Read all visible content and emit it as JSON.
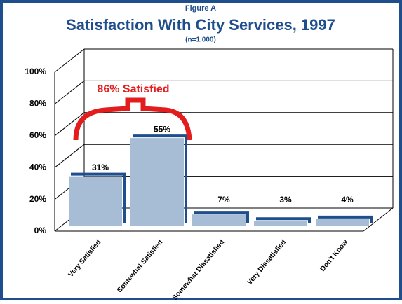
{
  "chart_data": {
    "type": "bar",
    "supertitle": "Figure A",
    "title": "Satisfaction With City Services, 1997",
    "subtitle": "(n=1,000)",
    "categories": [
      "Very Satisfied",
      "Somewhat Satisfied",
      "Somewhat Dissatisfied",
      "Very Dissatisfied",
      "Don't Know"
    ],
    "values": [
      31,
      55,
      7,
      3,
      4
    ],
    "value_labels": [
      "31%",
      "55%",
      "7%",
      "3%",
      "4%"
    ],
    "color": "#a7bdd6",
    "edge_color": "#1f4e8c",
    "ylim": [
      0,
      100
    ],
    "yticks": [
      {
        "value": 0,
        "label": "0%"
      },
      {
        "value": 20,
        "label": "20%"
      },
      {
        "value": 40,
        "label": "40%"
      },
      {
        "value": 60,
        "label": "60%"
      },
      {
        "value": 80,
        "label": "80%"
      },
      {
        "value": 100,
        "label": "100%"
      }
    ],
    "grid": true,
    "annotation": "86% Satisfied"
  }
}
